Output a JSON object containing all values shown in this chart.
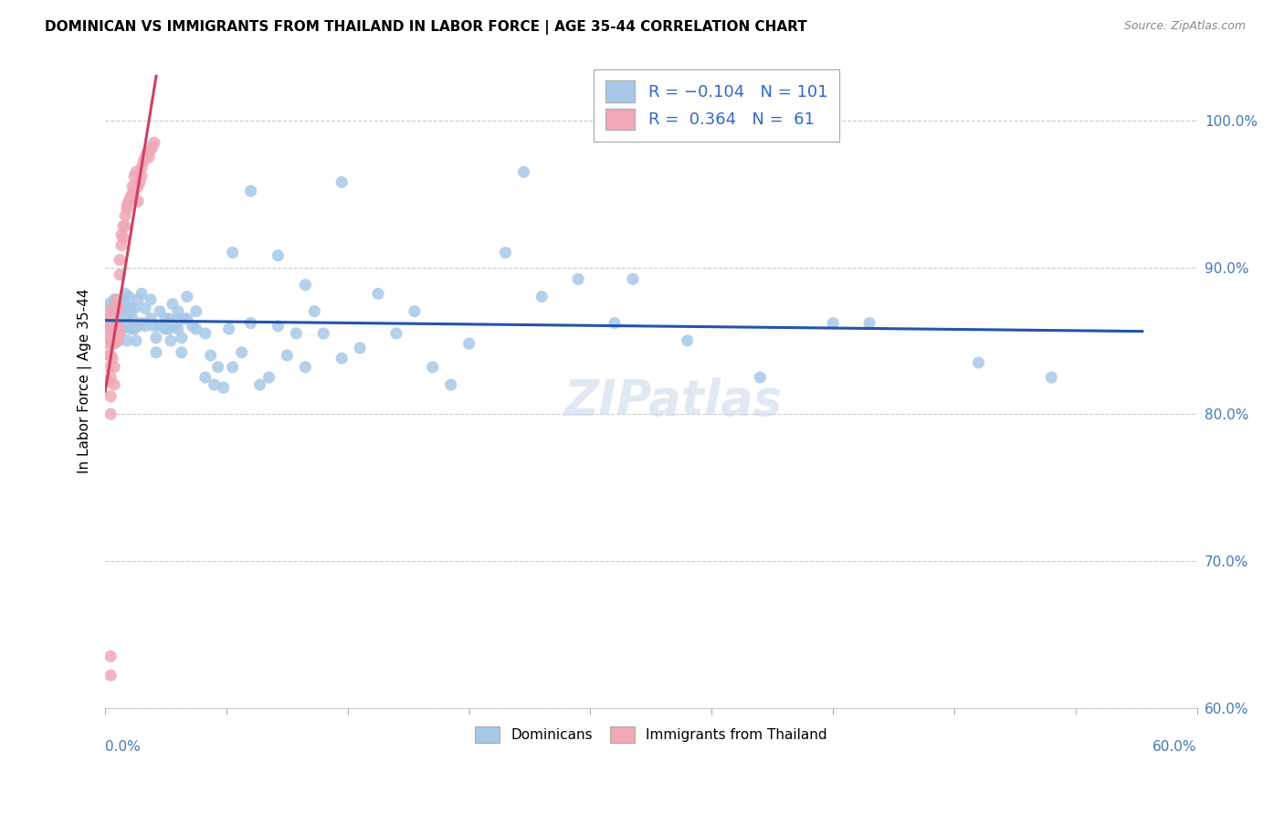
{
  "title": "DOMINICAN VS IMMIGRANTS FROM THAILAND IN LABOR FORCE | AGE 35-44 CORRELATION CHART",
  "source": "Source: ZipAtlas.com",
  "ylabel": "In Labor Force | Age 35-44",
  "legend_label1": "Dominicans",
  "legend_label2": "Immigrants from Thailand",
  "blue_color": "#a8c8e8",
  "pink_color": "#f0a8b8",
  "blue_line_color": "#2255aa",
  "pink_line_color": "#d04060",
  "xmin": 0.0,
  "xmax": 0.6,
  "ymin": 0.6,
  "ymax": 1.045,
  "ytick_vals": [
    0.6,
    0.7,
    0.8,
    0.9,
    1.0
  ],
  "ytick_labels": [
    "60.0%",
    "70.0%",
    "80.0%",
    "90.0%",
    "100.0%"
  ],
  "blue_scatter": [
    [
      0.001,
      0.862
    ],
    [
      0.002,
      0.858
    ],
    [
      0.002,
      0.875
    ],
    [
      0.003,
      0.865
    ],
    [
      0.003,
      0.872
    ],
    [
      0.004,
      0.858
    ],
    [
      0.004,
      0.868
    ],
    [
      0.005,
      0.862
    ],
    [
      0.005,
      0.878
    ],
    [
      0.006,
      0.86
    ],
    [
      0.006,
      0.87
    ],
    [
      0.007,
      0.858
    ],
    [
      0.007,
      0.85
    ],
    [
      0.008,
      0.865
    ],
    [
      0.008,
      0.86
    ],
    [
      0.009,
      0.872
    ],
    [
      0.009,
      0.858
    ],
    [
      0.01,
      0.87
    ],
    [
      0.01,
      0.878
    ],
    [
      0.011,
      0.875
    ],
    [
      0.011,
      0.882
    ],
    [
      0.012,
      0.86
    ],
    [
      0.012,
      0.85
    ],
    [
      0.013,
      0.868
    ],
    [
      0.013,
      0.88
    ],
    [
      0.014,
      0.872
    ],
    [
      0.014,
      0.858
    ],
    [
      0.015,
      0.865
    ],
    [
      0.016,
      0.858
    ],
    [
      0.016,
      0.872
    ],
    [
      0.017,
      0.85
    ],
    [
      0.018,
      0.878
    ],
    [
      0.018,
      0.86
    ],
    [
      0.02,
      0.882
    ],
    [
      0.02,
      0.862
    ],
    [
      0.022,
      0.872
    ],
    [
      0.022,
      0.86
    ],
    [
      0.025,
      0.865
    ],
    [
      0.025,
      0.878
    ],
    [
      0.027,
      0.86
    ],
    [
      0.028,
      0.852
    ],
    [
      0.028,
      0.842
    ],
    [
      0.03,
      0.86
    ],
    [
      0.03,
      0.87
    ],
    [
      0.032,
      0.86
    ],
    [
      0.033,
      0.865
    ],
    [
      0.033,
      0.858
    ],
    [
      0.035,
      0.858
    ],
    [
      0.035,
      0.865
    ],
    [
      0.036,
      0.85
    ],
    [
      0.037,
      0.875
    ],
    [
      0.038,
      0.86
    ],
    [
      0.04,
      0.858
    ],
    [
      0.04,
      0.865
    ],
    [
      0.04,
      0.87
    ],
    [
      0.042,
      0.842
    ],
    [
      0.042,
      0.852
    ],
    [
      0.043,
      0.865
    ],
    [
      0.045,
      0.88
    ],
    [
      0.045,
      0.865
    ],
    [
      0.048,
      0.86
    ],
    [
      0.05,
      0.87
    ],
    [
      0.05,
      0.858
    ],
    [
      0.055,
      0.825
    ],
    [
      0.055,
      0.855
    ],
    [
      0.058,
      0.84
    ],
    [
      0.06,
      0.82
    ],
    [
      0.062,
      0.832
    ],
    [
      0.065,
      0.818
    ],
    [
      0.068,
      0.858
    ],
    [
      0.07,
      0.832
    ],
    [
      0.075,
      0.842
    ],
    [
      0.08,
      0.862
    ],
    [
      0.085,
      0.82
    ],
    [
      0.09,
      0.825
    ],
    [
      0.095,
      0.86
    ],
    [
      0.1,
      0.84
    ],
    [
      0.105,
      0.855
    ],
    [
      0.11,
      0.832
    ],
    [
      0.115,
      0.87
    ],
    [
      0.12,
      0.855
    ],
    [
      0.13,
      0.838
    ],
    [
      0.14,
      0.845
    ],
    [
      0.15,
      0.882
    ],
    [
      0.16,
      0.855
    ],
    [
      0.17,
      0.87
    ],
    [
      0.18,
      0.832
    ],
    [
      0.19,
      0.82
    ],
    [
      0.2,
      0.848
    ],
    [
      0.22,
      0.91
    ],
    [
      0.23,
      0.965
    ],
    [
      0.24,
      0.88
    ],
    [
      0.26,
      0.892
    ],
    [
      0.28,
      0.862
    ],
    [
      0.29,
      0.892
    ],
    [
      0.32,
      0.85
    ],
    [
      0.36,
      0.825
    ],
    [
      0.4,
      0.862
    ],
    [
      0.42,
      0.862
    ],
    [
      0.48,
      0.835
    ],
    [
      0.52,
      0.825
    ],
    [
      0.13,
      0.958
    ],
    [
      0.08,
      0.952
    ],
    [
      0.07,
      0.91
    ],
    [
      0.095,
      0.908
    ],
    [
      0.11,
      0.888
    ]
  ],
  "pink_scatter": [
    [
      0.001,
      0.862
    ],
    [
      0.001,
      0.87
    ],
    [
      0.001,
      0.855
    ],
    [
      0.002,
      0.858
    ],
    [
      0.002,
      0.862
    ],
    [
      0.002,
      0.848
    ],
    [
      0.002,
      0.84
    ],
    [
      0.002,
      0.832
    ],
    [
      0.002,
      0.822
    ],
    [
      0.003,
      0.858
    ],
    [
      0.003,
      0.85
    ],
    [
      0.003,
      0.84
    ],
    [
      0.003,
      0.825
    ],
    [
      0.003,
      0.812
    ],
    [
      0.003,
      0.8
    ],
    [
      0.004,
      0.865
    ],
    [
      0.004,
      0.858
    ],
    [
      0.004,
      0.848
    ],
    [
      0.004,
      0.838
    ],
    [
      0.005,
      0.872
    ],
    [
      0.005,
      0.862
    ],
    [
      0.005,
      0.858
    ],
    [
      0.005,
      0.848
    ],
    [
      0.005,
      0.832
    ],
    [
      0.005,
      0.82
    ],
    [
      0.006,
      0.878
    ],
    [
      0.006,
      0.87
    ],
    [
      0.007,
      0.872
    ],
    [
      0.007,
      0.86
    ],
    [
      0.007,
      0.85
    ],
    [
      0.008,
      0.905
    ],
    [
      0.008,
      0.895
    ],
    [
      0.008,
      0.855
    ],
    [
      0.009,
      0.922
    ],
    [
      0.009,
      0.915
    ],
    [
      0.01,
      0.928
    ],
    [
      0.01,
      0.92
    ],
    [
      0.011,
      0.935
    ],
    [
      0.011,
      0.928
    ],
    [
      0.012,
      0.94
    ],
    [
      0.012,
      0.942
    ],
    [
      0.013,
      0.945
    ],
    [
      0.014,
      0.948
    ],
    [
      0.015,
      0.955
    ],
    [
      0.015,
      0.95
    ],
    [
      0.016,
      0.952
    ],
    [
      0.016,
      0.962
    ],
    [
      0.017,
      0.965
    ],
    [
      0.018,
      0.955
    ],
    [
      0.018,
      0.945
    ],
    [
      0.019,
      0.958
    ],
    [
      0.02,
      0.968
    ],
    [
      0.02,
      0.962
    ],
    [
      0.021,
      0.972
    ],
    [
      0.022,
      0.975
    ],
    [
      0.023,
      0.978
    ],
    [
      0.024,
      0.975
    ],
    [
      0.025,
      0.98
    ],
    [
      0.026,
      0.982
    ],
    [
      0.027,
      0.985
    ],
    [
      0.003,
      0.635
    ],
    [
      0.003,
      0.622
    ]
  ],
  "pink_line_xmax": 0.028,
  "blue_line_xmin": 0.0,
  "blue_line_xmax": 0.57,
  "watermark": "ZIPatlas"
}
